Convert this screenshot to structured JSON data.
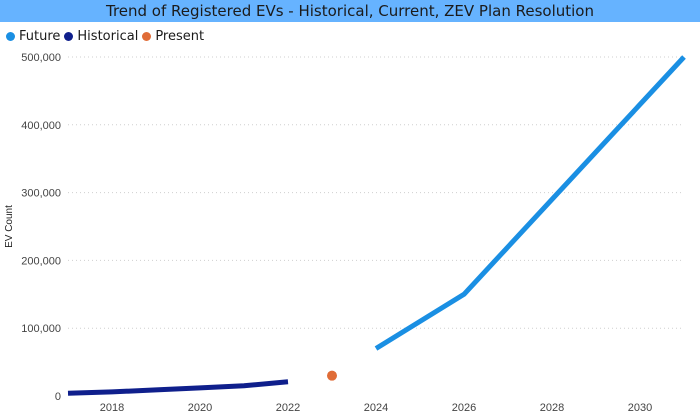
{
  "title": "Trend of Registered EVs - Historical, Current, ZEV Plan Resolution",
  "legend": [
    {
      "label": "Future",
      "color": "#1a8fe3"
    },
    {
      "label": "Historical",
      "color": "#0f1f8c"
    },
    {
      "label": "Present",
      "color": "#e06c37"
    }
  ],
  "chart_data": {
    "type": "line",
    "ylabel": "EV Count",
    "xlabel": "",
    "xlim": [
      2017,
      2031
    ],
    "ylim": [
      0,
      500000
    ],
    "x_ticks": [
      "2018",
      "2020",
      "2022",
      "2024",
      "2026",
      "2028",
      "2030"
    ],
    "y_ticks": [
      "0",
      "100,000",
      "200,000",
      "300,000",
      "400,000",
      "500,000"
    ],
    "grid": "horizontal dotted",
    "legend_position": "top-left",
    "series": [
      {
        "name": "Historical",
        "color": "#0f1f8c",
        "style": "line",
        "x": [
          2017,
          2018,
          2019,
          2020,
          2021,
          2022
        ],
        "y": [
          4000,
          6000,
          9000,
          12000,
          15000,
          21000
        ]
      },
      {
        "name": "Present",
        "color": "#e06c37",
        "style": "point",
        "x": [
          2023
        ],
        "y": [
          30000
        ]
      },
      {
        "name": "Future",
        "color": "#1a8fe3",
        "style": "line",
        "x": [
          2024,
          2026,
          2031
        ],
        "y": [
          70000,
          150000,
          500000
        ]
      }
    ]
  }
}
